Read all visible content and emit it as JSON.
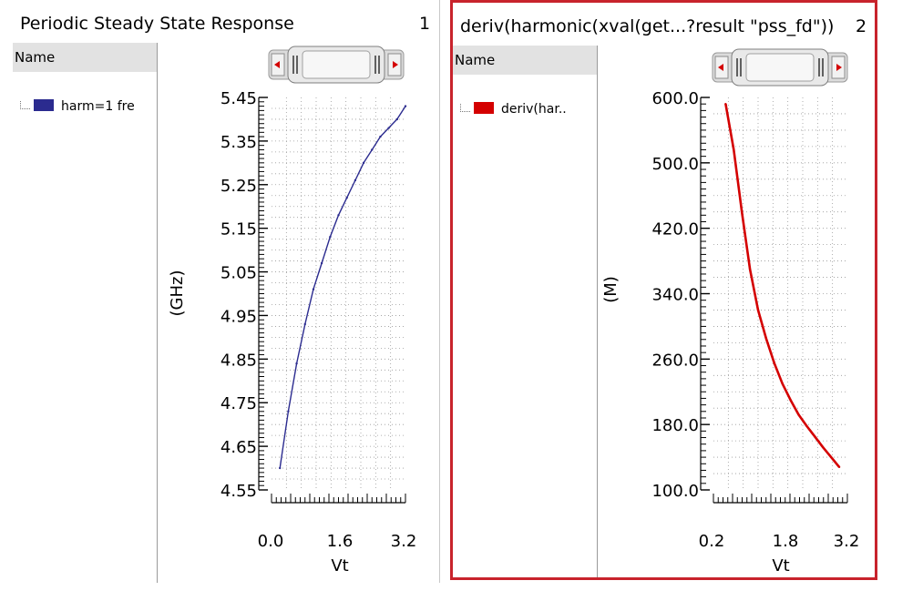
{
  "panels": [
    {
      "title": "Periodic Steady State Response",
      "number": "1",
      "name_header": "Name",
      "legend_label": "harm=1 fre",
      "selected": false
    },
    {
      "title": "deriv(harmonic(xval(get...?result \"pss_fd\"))",
      "number": "2",
      "name_header": "Name",
      "legend_label": "deriv(har..",
      "selected": true
    }
  ],
  "colors": {
    "series1": "#2b2b8f",
    "series2": "#d40000",
    "selection": "#c8232c",
    "grid": "#9a9a9a"
  },
  "chart_data": [
    {
      "type": "line",
      "title": "Periodic Steady State Response",
      "xlabel": "Vt",
      "ylabel": "(GHz)",
      "xlim": [
        0.0,
        3.2
      ],
      "ylim": [
        4.55,
        5.45
      ],
      "xticks": [
        "0.0",
        "1.6",
        "3.2"
      ],
      "yticks": [
        "4.55",
        "4.65",
        "4.75",
        "4.85",
        "4.95",
        "5.05",
        "5.15",
        "5.25",
        "5.35",
        "5.45"
      ],
      "grid": true,
      "series": [
        {
          "name": "harm=1 fre",
          "x": [
            0.2,
            0.4,
            0.6,
            0.8,
            1.0,
            1.2,
            1.4,
            1.6,
            1.8,
            2.0,
            2.2,
            2.4,
            2.6,
            2.8,
            3.0,
            3.2
          ],
          "y": [
            4.6,
            4.73,
            4.84,
            4.93,
            5.01,
            5.07,
            5.13,
            5.18,
            5.22,
            5.26,
            5.3,
            5.33,
            5.36,
            5.38,
            5.4,
            5.43
          ]
        }
      ]
    },
    {
      "type": "line",
      "title": "deriv(harmonic(xval(get...?result \"pss_fd\"))",
      "xlabel": "Vt",
      "ylabel": "(M)",
      "xlim": [
        0.0,
        3.3
      ],
      "ylim": [
        100.0,
        620.0
      ],
      "xticks": [
        "0.2",
        "1.8",
        "3.2"
      ],
      "yticks": [
        "100.0",
        "180.0",
        "260.0",
        "340.0",
        "420.0",
        "500.0",
        "600.0"
      ],
      "grid": true,
      "series": [
        {
          "name": "deriv(har..",
          "x": [
            0.3,
            0.5,
            0.7,
            0.9,
            1.1,
            1.3,
            1.5,
            1.7,
            1.9,
            2.1,
            2.3,
            2.5,
            2.7,
            2.9,
            3.1
          ],
          "y": [
            590,
            520,
            440,
            370,
            320,
            285,
            255,
            230,
            210,
            192,
            178,
            165,
            152,
            140,
            128
          ]
        }
      ]
    }
  ]
}
